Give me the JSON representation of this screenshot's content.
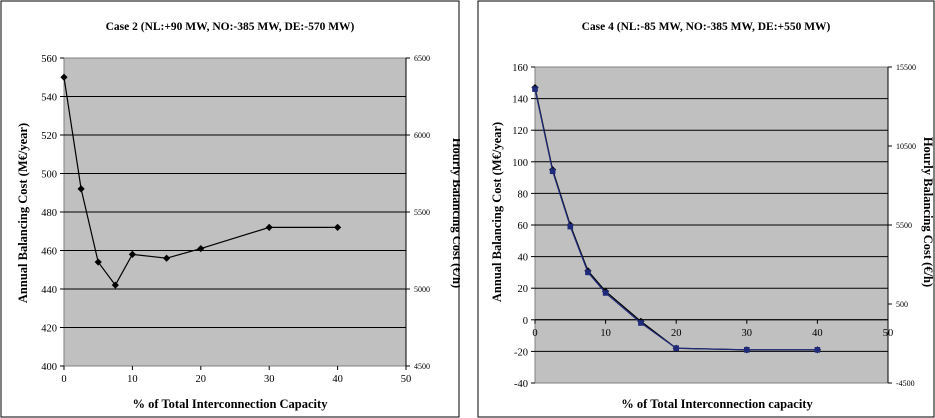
{
  "chart_data": [
    {
      "type": "line",
      "title": "Case 2 (NL:+90 MW, NO:-385 MW, DE:-570 MW)",
      "xlabel": "% of Total Interconnection Capacity",
      "ylabel": "Annual Balancing Cost (M€/year)",
      "y2label": "Hourly Balancing Cost (€/h)",
      "xlim": [
        0,
        50
      ],
      "ylim": [
        400,
        560
      ],
      "y2lim": [
        4500,
        6500
      ],
      "x_ticks": [
        "0",
        "10",
        "20",
        "30",
        "40",
        "50"
      ],
      "y_ticks": [
        "400",
        "420",
        "440",
        "460",
        "480",
        "500",
        "520",
        "540",
        "560"
      ],
      "y2_ticks": [
        "4500",
        "5000",
        "5500",
        "6000",
        "6500"
      ],
      "grid": true,
      "colors": {
        "plot_bg": "#c0c0c0",
        "line": "#000000"
      },
      "series": [
        {
          "marker": "diamond",
          "x": [
            0,
            2.5,
            5,
            7.5,
            10,
            15,
            20,
            30,
            40
          ],
          "values": [
            550,
            492,
            454,
            442,
            458,
            456,
            461,
            472,
            472
          ]
        }
      ]
    },
    {
      "type": "line",
      "title": "Case 4 (NL:-85 MW, NO:-385 MW, DE:+550 MW)",
      "xlabel": "% of Total Interconnection capacity",
      "ylabel": "Annual Balancing Cost (M€/year)",
      "y2label": "Hourly Balancing Cost (€/h)",
      "xlim": [
        0,
        50
      ],
      "ylim": [
        -40,
        160
      ],
      "y2lim": [
        -4500,
        15500
      ],
      "x_ticks": [
        "0",
        "10",
        "20",
        "30",
        "40",
        "50"
      ],
      "y_ticks": [
        "-40",
        "-20",
        "0",
        "20",
        "40",
        "60",
        "80",
        "100",
        "120",
        "140",
        "160"
      ],
      "y2_ticks": [
        "-4500",
        "500",
        "5500",
        "10500",
        "15500"
      ],
      "grid": true,
      "colors": {
        "plot_bg": "#c0c0c0",
        "line": "#000000",
        "line2": "#1f2a7a"
      },
      "series": [
        {
          "marker": "diamond",
          "x": [
            0,
            2.5,
            5,
            7.5,
            10,
            15,
            20,
            30,
            40
          ],
          "values": [
            147,
            95,
            60,
            31,
            18,
            -1,
            -18,
            -19,
            -19
          ]
        },
        {
          "marker": "square",
          "x": [
            0,
            2.5,
            5,
            7.5,
            10,
            15,
            20,
            30,
            40
          ],
          "values": [
            146,
            94,
            59,
            30,
            17,
            -2,
            -18,
            -19,
            -19
          ]
        }
      ]
    }
  ]
}
